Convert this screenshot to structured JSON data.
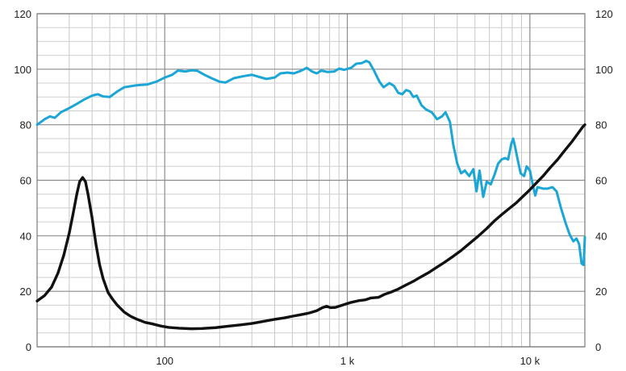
{
  "chart_data": {
    "type": "line",
    "x_scale": "log",
    "xlim": [
      20,
      20000
    ],
    "ylim": [
      0,
      120
    ],
    "ylim_right": [
      0,
      120
    ],
    "grid": true,
    "legend": "none",
    "title": "",
    "xlabel": "",
    "ylabel": "",
    "x_major_ticks": [
      100,
      1000,
      10000
    ],
    "x_tick_labels": [
      "100",
      "1 k",
      "10 k"
    ],
    "y_ticks": [
      0,
      20,
      40,
      60,
      80,
      100,
      120
    ],
    "y_tick_labels": [
      "0",
      "20",
      "40",
      "60",
      "80",
      "100",
      "120"
    ],
    "y_right_tick_labels": [
      "0",
      "20",
      "40",
      "60",
      "80",
      "100",
      "120"
    ],
    "series": [
      {
        "color": "#1BA6D6",
        "axis": "left",
        "points": [
          [
            20,
            80
          ],
          [
            22,
            82
          ],
          [
            23.5,
            83
          ],
          [
            25,
            82.5
          ],
          [
            27,
            84.5
          ],
          [
            30,
            86
          ],
          [
            33,
            87.5
          ],
          [
            36,
            89
          ],
          [
            40,
            90.5
          ],
          [
            43,
            91
          ],
          [
            46,
            90.2
          ],
          [
            50,
            90
          ],
          [
            55,
            92
          ],
          [
            60,
            93.5
          ],
          [
            70,
            94.2
          ],
          [
            80,
            94.5
          ],
          [
            90,
            95.5
          ],
          [
            100,
            97
          ],
          [
            110,
            98
          ],
          [
            118,
            99.5
          ],
          [
            130,
            99.2
          ],
          [
            140,
            99.6
          ],
          [
            150,
            99.5
          ],
          [
            165,
            98
          ],
          [
            180,
            96.8
          ],
          [
            200,
            95.5
          ],
          [
            215,
            95.2
          ],
          [
            240,
            96.8
          ],
          [
            270,
            97.5
          ],
          [
            300,
            98
          ],
          [
            330,
            97.2
          ],
          [
            360,
            96.5
          ],
          [
            400,
            97
          ],
          [
            430,
            98.5
          ],
          [
            470,
            98.8
          ],
          [
            510,
            98.5
          ],
          [
            560,
            99.5
          ],
          [
            600,
            100.5
          ],
          [
            640,
            99.2
          ],
          [
            680,
            98.5
          ],
          [
            720,
            99.5
          ],
          [
            780,
            99
          ],
          [
            850,
            99.2
          ],
          [
            900,
            100.2
          ],
          [
            960,
            99.8
          ],
          [
            1050,
            100.5
          ],
          [
            1120,
            102
          ],
          [
            1200,
            102.2
          ],
          [
            1270,
            103
          ],
          [
            1320,
            102.5
          ],
          [
            1400,
            99.5
          ],
          [
            1500,
            95.5
          ],
          [
            1580,
            93.5
          ],
          [
            1700,
            95
          ],
          [
            1800,
            94
          ],
          [
            1900,
            91.5
          ],
          [
            2000,
            91
          ],
          [
            2100,
            92.5
          ],
          [
            2200,
            92
          ],
          [
            2300,
            90
          ],
          [
            2400,
            90.5
          ],
          [
            2550,
            87
          ],
          [
            2700,
            85.5
          ],
          [
            2900,
            84.5
          ],
          [
            3100,
            82
          ],
          [
            3300,
            83
          ],
          [
            3450,
            84.5
          ],
          [
            3650,
            81
          ],
          [
            3800,
            73
          ],
          [
            4000,
            66
          ],
          [
            4200,
            62.5
          ],
          [
            4400,
            63.5
          ],
          [
            4650,
            61.5
          ],
          [
            4900,
            64
          ],
          [
            5100,
            56
          ],
          [
            5300,
            63.5
          ],
          [
            5550,
            54
          ],
          [
            5800,
            59.5
          ],
          [
            6100,
            58.5
          ],
          [
            6400,
            62
          ],
          [
            6700,
            66
          ],
          [
            7000,
            67.5
          ],
          [
            7300,
            68
          ],
          [
            7600,
            67.5
          ],
          [
            7900,
            73
          ],
          [
            8100,
            75
          ],
          [
            8300,
            72
          ],
          [
            8600,
            67
          ],
          [
            8900,
            62.5
          ],
          [
            9300,
            61.5
          ],
          [
            9600,
            65
          ],
          [
            10000,
            63.5
          ],
          [
            10400,
            58
          ],
          [
            10700,
            54.5
          ],
          [
            11000,
            57.5
          ],
          [
            11800,
            57
          ],
          [
            12500,
            57
          ],
          [
            13300,
            57.5
          ],
          [
            14000,
            56
          ],
          [
            14800,
            50
          ],
          [
            15700,
            44.5
          ],
          [
            16500,
            40.5
          ],
          [
            17300,
            38
          ],
          [
            18000,
            39
          ],
          [
            18600,
            37
          ],
          [
            19200,
            30
          ],
          [
            19700,
            29.5
          ],
          [
            20000,
            39.5
          ]
        ]
      },
      {
        "color": "#111111",
        "axis": "left",
        "points": [
          [
            20,
            16.5
          ],
          [
            22,
            18.5
          ],
          [
            24,
            21.5
          ],
          [
            26,
            26.5
          ],
          [
            28,
            33
          ],
          [
            30,
            41
          ],
          [
            31.5,
            48
          ],
          [
            33,
            55
          ],
          [
            34.2,
            59.5
          ],
          [
            35.5,
            61
          ],
          [
            36.8,
            59.5
          ],
          [
            38,
            55
          ],
          [
            40,
            46.5
          ],
          [
            42,
            37
          ],
          [
            44,
            29.5
          ],
          [
            46,
            24.5
          ],
          [
            49,
            19.5
          ],
          [
            52,
            17
          ],
          [
            55,
            15
          ],
          [
            60,
            12.5
          ],
          [
            65,
            11
          ],
          [
            70,
            10
          ],
          [
            78,
            8.8
          ],
          [
            85,
            8.3
          ],
          [
            95,
            7.5
          ],
          [
            105,
            7
          ],
          [
            120,
            6.7
          ],
          [
            140,
            6.5
          ],
          [
            160,
            6.6
          ],
          [
            190,
            6.9
          ],
          [
            220,
            7.4
          ],
          [
            260,
            7.9
          ],
          [
            300,
            8.4
          ],
          [
            350,
            9.2
          ],
          [
            400,
            9.9
          ],
          [
            450,
            10.4
          ],
          [
            500,
            11
          ],
          [
            560,
            11.6
          ],
          [
            620,
            12.2
          ],
          [
            680,
            13
          ],
          [
            730,
            14.1
          ],
          [
            770,
            14.6
          ],
          [
            810,
            14.1
          ],
          [
            860,
            14.2
          ],
          [
            920,
            14.8
          ],
          [
            980,
            15.4
          ],
          [
            1050,
            16
          ],
          [
            1150,
            16.6
          ],
          [
            1250,
            16.9
          ],
          [
            1350,
            17.6
          ],
          [
            1480,
            17.8
          ],
          [
            1600,
            18.9
          ],
          [
            1750,
            19.8
          ],
          [
            1900,
            20.8
          ],
          [
            2100,
            22.3
          ],
          [
            2300,
            23.6
          ],
          [
            2500,
            25
          ],
          [
            2800,
            26.8
          ],
          [
            3100,
            28.7
          ],
          [
            3400,
            30.4
          ],
          [
            3800,
            32.6
          ],
          [
            4200,
            34.7
          ],
          [
            4700,
            37.4
          ],
          [
            5200,
            39.8
          ],
          [
            5800,
            42.6
          ],
          [
            6400,
            45.4
          ],
          [
            7000,
            47.6
          ],
          [
            7700,
            49.8
          ],
          [
            8400,
            51.8
          ],
          [
            9100,
            54
          ],
          [
            9900,
            56.3
          ],
          [
            10800,
            58.9
          ],
          [
            11800,
            61.5
          ],
          [
            12900,
            64.5
          ],
          [
            14200,
            67.5
          ],
          [
            15500,
            70.7
          ],
          [
            16900,
            73.7
          ],
          [
            18400,
            77
          ],
          [
            19500,
            79.3
          ],
          [
            20000,
            80
          ]
        ]
      }
    ]
  }
}
